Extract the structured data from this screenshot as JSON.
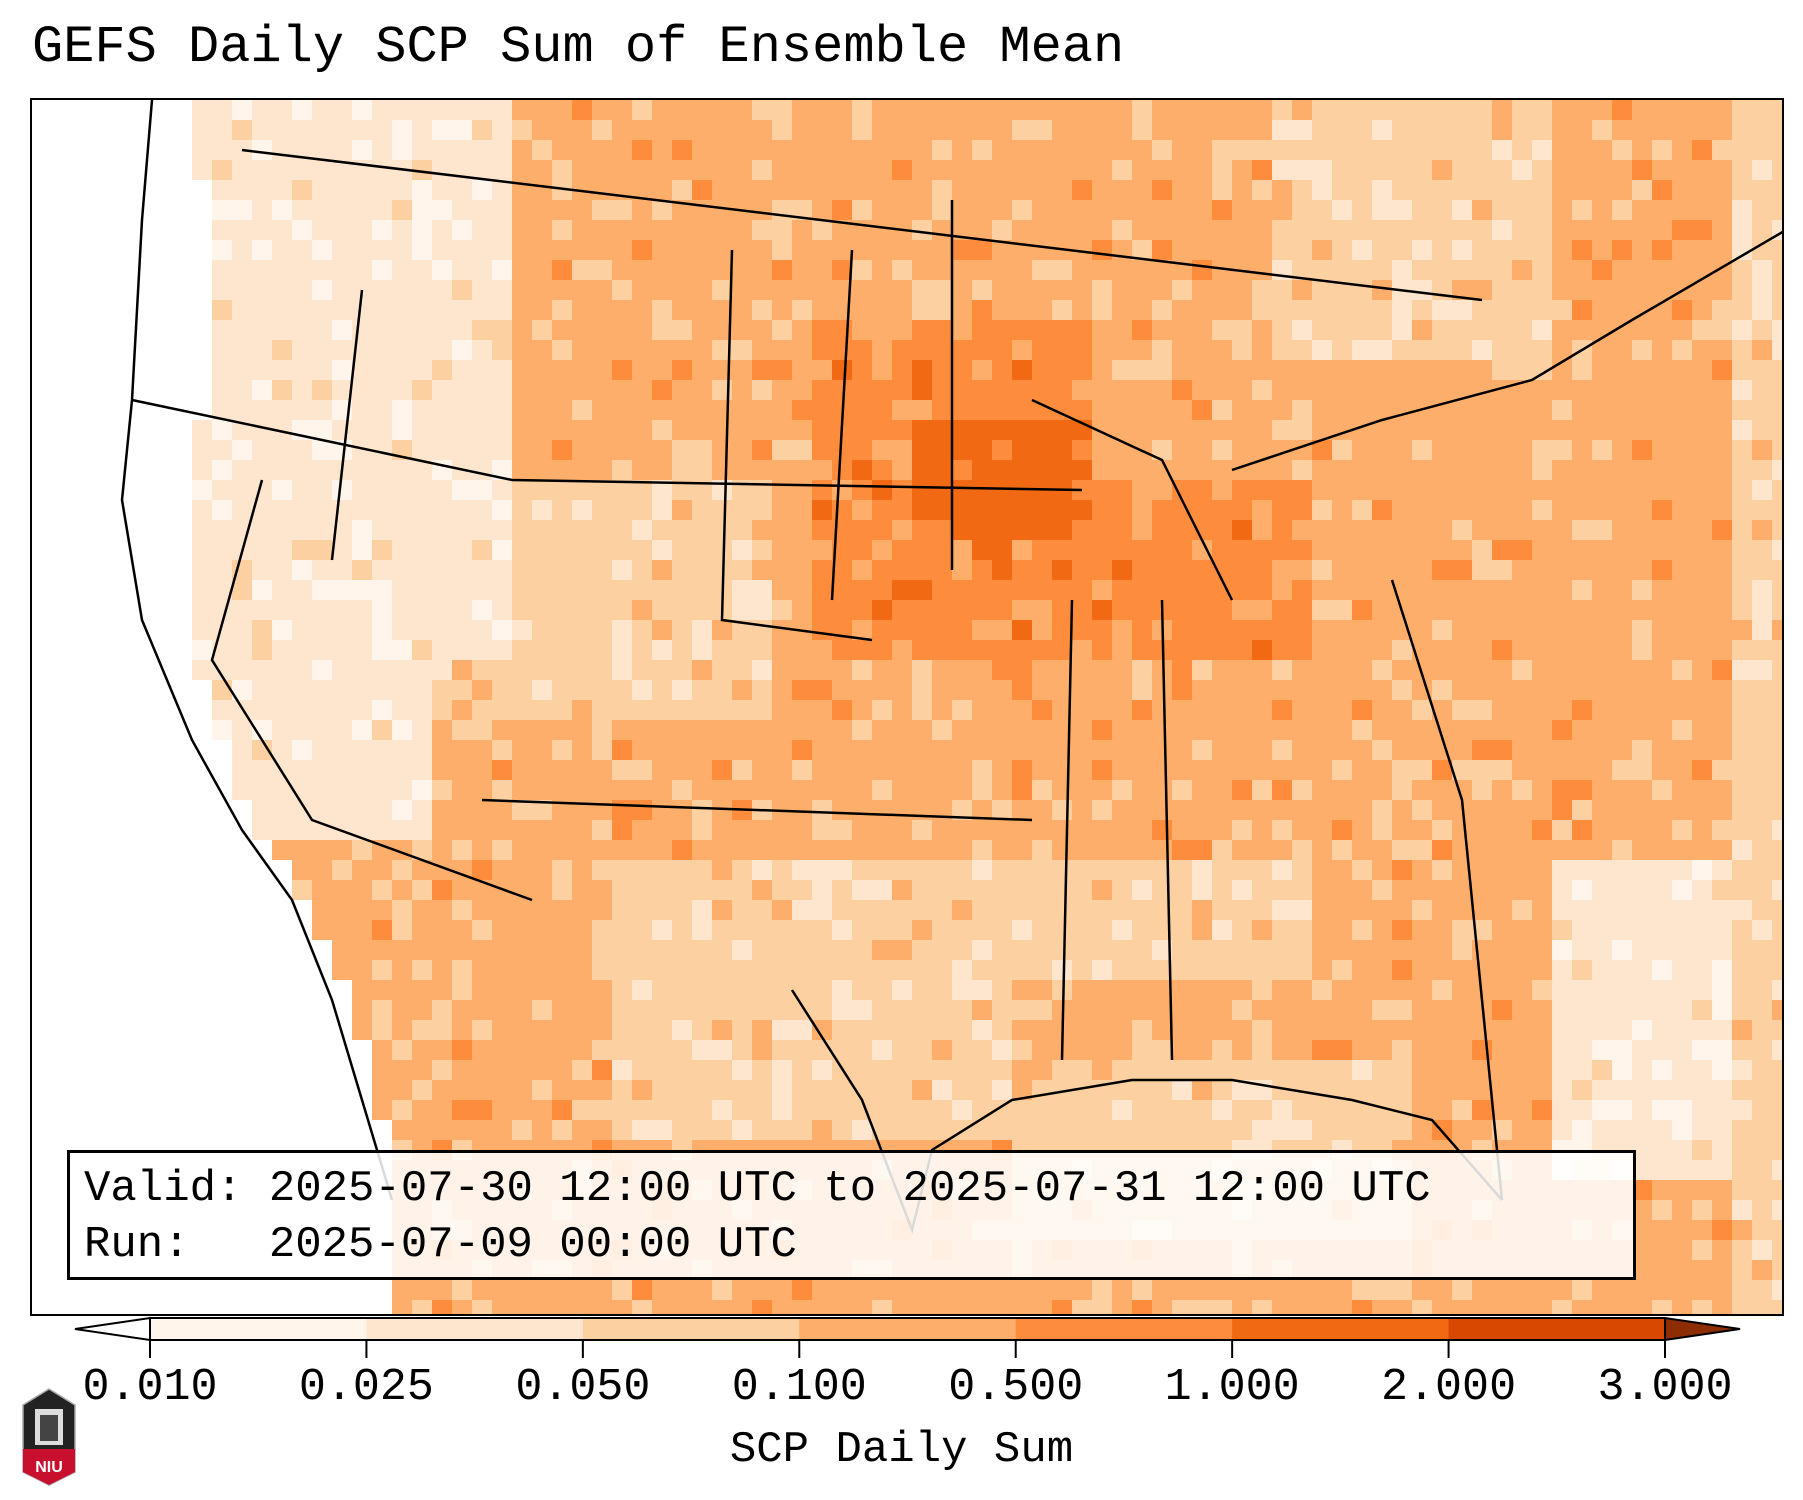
{
  "title": "GEFS Daily SCP Sum of Ensemble Mean",
  "info": {
    "valid_label": "Valid:",
    "valid_value": "2025-07-30 12:00 UTC to 2025-07-31 12:00 UTC",
    "run_label": "Run:",
    "run_value": "2025-07-09 00:00 UTC"
  },
  "colorbar": {
    "label": "SCP Daily Sum",
    "ticks": [
      "0.010",
      "0.025",
      "0.050",
      "0.100",
      "0.500",
      "1.000",
      "2.000",
      "3.000"
    ],
    "colors": [
      "#fff5eb",
      "#fee6ce",
      "#fdd0a2",
      "#fdae6b",
      "#fd8d3c",
      "#f16913",
      "#d94801"
    ],
    "under_color": "#ffffff",
    "over_color": "#8c2d04"
  },
  "logo": {
    "text": "NIU",
    "color": "#c8102e"
  }
}
